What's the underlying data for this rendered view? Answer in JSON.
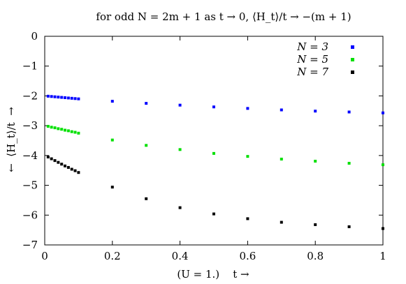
{
  "chart_data": {
    "type": "scatter",
    "title": "for odd N = 2m + 1 as t → 0, ⟨H_t⟩/t → −(m + 1)",
    "xlabel": "(U = 1.)    t →",
    "ylabel": "←  ⟨H_t⟩/t  →",
    "xlim": [
      0,
      1
    ],
    "ylim": [
      -7,
      0
    ],
    "x_ticks": [
      0,
      0.2,
      0.4,
      0.6,
      0.8,
      1
    ],
    "x_tick_labels": [
      "0",
      "0.2",
      "0.4",
      "0.6",
      "0.8",
      "1"
    ],
    "y_ticks": [
      0,
      -1,
      -2,
      -3,
      -4,
      -5,
      -6,
      -7
    ],
    "y_tick_labels": [
      "0",
      "−1",
      "−2",
      "−3",
      "−4",
      "−5",
      "−6",
      "−7"
    ],
    "grid": false,
    "legend_position": "top-right",
    "series": [
      {
        "name": "N = 3",
        "color": "#0000ff",
        "x": [
          0.01,
          0.02,
          0.03,
          0.04,
          0.05,
          0.06,
          0.07,
          0.08,
          0.09,
          0.1,
          0.2,
          0.3,
          0.4,
          0.5,
          0.6,
          0.7,
          0.8,
          0.9,
          1.0
        ],
        "y": [
          -2.01,
          -2.02,
          -2.03,
          -2.04,
          -2.05,
          -2.06,
          -2.07,
          -2.08,
          -2.09,
          -2.1,
          -2.18,
          -2.25,
          -2.31,
          -2.37,
          -2.42,
          -2.47,
          -2.51,
          -2.54,
          -2.57
        ]
      },
      {
        "name": "N = 5",
        "color": "#00e000",
        "x": [
          0.01,
          0.02,
          0.03,
          0.04,
          0.05,
          0.06,
          0.07,
          0.08,
          0.09,
          0.1,
          0.2,
          0.3,
          0.4,
          0.5,
          0.6,
          0.7,
          0.8,
          0.9,
          1.0
        ],
        "y": [
          -3.02,
          -3.05,
          -3.07,
          -3.1,
          -3.12,
          -3.15,
          -3.17,
          -3.2,
          -3.22,
          -3.25,
          -3.48,
          -3.66,
          -3.8,
          -3.93,
          -4.03,
          -4.12,
          -4.19,
          -4.26,
          -4.31
        ]
      },
      {
        "name": "N = 7",
        "color": "#000000",
        "x": [
          0.01,
          0.02,
          0.03,
          0.04,
          0.05,
          0.06,
          0.07,
          0.08,
          0.09,
          0.1,
          0.2,
          0.3,
          0.4,
          0.5,
          0.6,
          0.7,
          0.8,
          0.9,
          1.0
        ],
        "y": [
          -4.05,
          -4.11,
          -4.17,
          -4.23,
          -4.29,
          -4.35,
          -4.4,
          -4.46,
          -4.51,
          -4.57,
          -5.06,
          -5.45,
          -5.75,
          -5.96,
          -6.12,
          -6.24,
          -6.32,
          -6.39,
          -6.45
        ]
      }
    ]
  }
}
